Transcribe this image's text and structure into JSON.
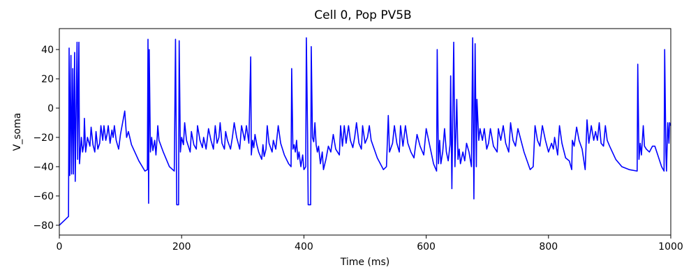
{
  "chart_data": {
    "type": "line",
    "title": "Cell 0, Pop PV5B",
    "xlabel": "Time (ms)",
    "ylabel": "V_soma",
    "color": "#0000ff",
    "xlim": [
      0,
      1000
    ],
    "ylim": [
      -86.7,
      54.3
    ],
    "xticks": [
      0,
      200,
      400,
      600,
      800,
      1000
    ],
    "yticks": [
      {
        "value": -80,
        "label": "−80"
      },
      {
        "value": -60,
        "label": "−60"
      },
      {
        "value": -40,
        "label": "−40"
      },
      {
        "value": -20,
        "label": "−20"
      },
      0,
      20,
      40
    ],
    "x": [
      0,
      15,
      16,
      17,
      19,
      20,
      22,
      23,
      25,
      26,
      29,
      30,
      32,
      33,
      36,
      38,
      40,
      41,
      43,
      46,
      50,
      52,
      55,
      58,
      60,
      63,
      66,
      68,
      71,
      73,
      76,
      78,
      80,
      83,
      86,
      88,
      90,
      93,
      97,
      100,
      107,
      110,
      113,
      118,
      130,
      140,
      144,
      145,
      146,
      147,
      149,
      151,
      153,
      156,
      158,
      160,
      161,
      163,
      170,
      180,
      188,
      190,
      192,
      195,
      196,
      198,
      200,
      203,
      205,
      208,
      214,
      216,
      220,
      224,
      226,
      230,
      234,
      236,
      240,
      244,
      248,
      252,
      255,
      258,
      261,
      263,
      266,
      270,
      272,
      275,
      280,
      283,
      286,
      290,
      295,
      298,
      303,
      306,
      310,
      313,
      314,
      316,
      318,
      320,
      323,
      326,
      328,
      331,
      333,
      335,
      338,
      340,
      343,
      348,
      350,
      354,
      358,
      362,
      368,
      375,
      379,
      380,
      382,
      384,
      386,
      388,
      390,
      392,
      395,
      398,
      400,
      403,
      404,
      406,
      407,
      411,
      412,
      414,
      416,
      418,
      420,
      422,
      424,
      427,
      430,
      432,
      436,
      440,
      444,
      448,
      452,
      458,
      460,
      463,
      466,
      469,
      473,
      476,
      480,
      483,
      486,
      490,
      494,
      496,
      500,
      504,
      507,
      510,
      520,
      530,
      535,
      538,
      540,
      545,
      548,
      552,
      556,
      558,
      562,
      566,
      570,
      575,
      580,
      585,
      590,
      596,
      600,
      605,
      612,
      617,
      618,
      620,
      622,
      624,
      627,
      630,
      633,
      636,
      639,
      640,
      642,
      645,
      647,
      650,
      652,
      654,
      656,
      660,
      663,
      666,
      670,
      674,
      676,
      678,
      680,
      682,
      683,
      686,
      688,
      692,
      695,
      699,
      702,
      705,
      710,
      716,
      718,
      722,
      726,
      730,
      735,
      738,
      742,
      746,
      750,
      760,
      770,
      775,
      778,
      782,
      786,
      790,
      795,
      800,
      805,
      808,
      810,
      815,
      818,
      822,
      828,
      834,
      838,
      839,
      842,
      846,
      850,
      855,
      860,
      863,
      866,
      870,
      874,
      877,
      880,
      883,
      886,
      890,
      893,
      896,
      900,
      910,
      920,
      932,
      945,
      946,
      948,
      950,
      952,
      955,
      957,
      960,
      965,
      970,
      974,
      985,
      989,
      990,
      992,
      993,
      995,
      997,
      998,
      1000
    ],
    "values": [
      -80,
      -74,
      41,
      -46,
      36,
      -45,
      27,
      -45,
      38,
      -50,
      45,
      -35,
      45,
      -38,
      -20,
      -30,
      -25,
      -7,
      -30,
      -20,
      -26,
      -13,
      -25,
      -30,
      -16,
      -28,
      -24,
      -12,
      -22,
      -12,
      -22,
      -18,
      -12,
      -24,
      -15,
      -20,
      -12,
      -22,
      -28,
      -18,
      -2,
      -20,
      -16,
      -25,
      -36,
      -43,
      -42,
      47,
      -65,
      40,
      -30,
      -20,
      -29,
      -22,
      -32,
      -20,
      -12,
      -22,
      -30,
      -40,
      -43,
      47,
      -66,
      -66,
      46,
      -30,
      -20,
      -25,
      -10,
      -22,
      -30,
      -16,
      -25,
      -28,
      -12,
      -22,
      -27,
      -20,
      -28,
      -14,
      -22,
      -28,
      -12,
      -24,
      -20,
      -10,
      -24,
      -28,
      -16,
      -22,
      -28,
      -20,
      -10,
      -20,
      -28,
      -12,
      -22,
      -12,
      -24,
      35,
      -32,
      -22,
      -27,
      -18,
      -25,
      -30,
      -32,
      -35,
      -25,
      -33,
      -28,
      -12,
      -24,
      -30,
      -22,
      -28,
      -12,
      -24,
      -32,
      -38,
      -40,
      27,
      -28,
      -25,
      -30,
      -22,
      -35,
      -30,
      -40,
      -32,
      -42,
      -40,
      48,
      -18,
      -66,
      -66,
      42,
      -20,
      -23,
      -10,
      -25,
      -30,
      -26,
      -38,
      -30,
      -42,
      -35,
      -26,
      -30,
      -18,
      -28,
      -32,
      -12,
      -26,
      -12,
      -24,
      -12,
      -22,
      -27,
      -20,
      -10,
      -24,
      -28,
      -12,
      -24,
      -20,
      -12,
      -22,
      -34,
      -42,
      -40,
      -5,
      -30,
      -24,
      -12,
      -24,
      -30,
      -12,
      -26,
      -12,
      -24,
      -30,
      -34,
      -18,
      -26,
      -32,
      -14,
      -24,
      -38,
      -43,
      40,
      -38,
      -22,
      -38,
      -30,
      -14,
      -30,
      -36,
      -25,
      22,
      -55,
      45,
      -40,
      6,
      -35,
      -28,
      -38,
      -30,
      -36,
      -24,
      -30,
      -40,
      48,
      -62,
      44,
      -40,
      6,
      -22,
      -14,
      -22,
      -14,
      -28,
      -24,
      -14,
      -26,
      -30,
      -14,
      -22,
      -12,
      -24,
      -30,
      -10,
      -22,
      -26,
      -14,
      -30,
      -42,
      -40,
      -12,
      -22,
      -26,
      -12,
      -22,
      -30,
      -24,
      -28,
      -20,
      -32,
      -12,
      -24,
      -34,
      -36,
      -42,
      -22,
      -26,
      -13,
      -22,
      -28,
      -42,
      -8,
      -24,
      -12,
      -22,
      -16,
      -22,
      -10,
      -24,
      -26,
      -12,
      -22,
      -26,
      -35,
      -40,
      -42,
      -43,
      30,
      -35,
      -24,
      -32,
      -12,
      -26,
      -28,
      -30,
      -26,
      -26,
      -40,
      -43,
      40,
      -30,
      -43,
      -10,
      -24,
      -10,
      -12
    ]
  }
}
